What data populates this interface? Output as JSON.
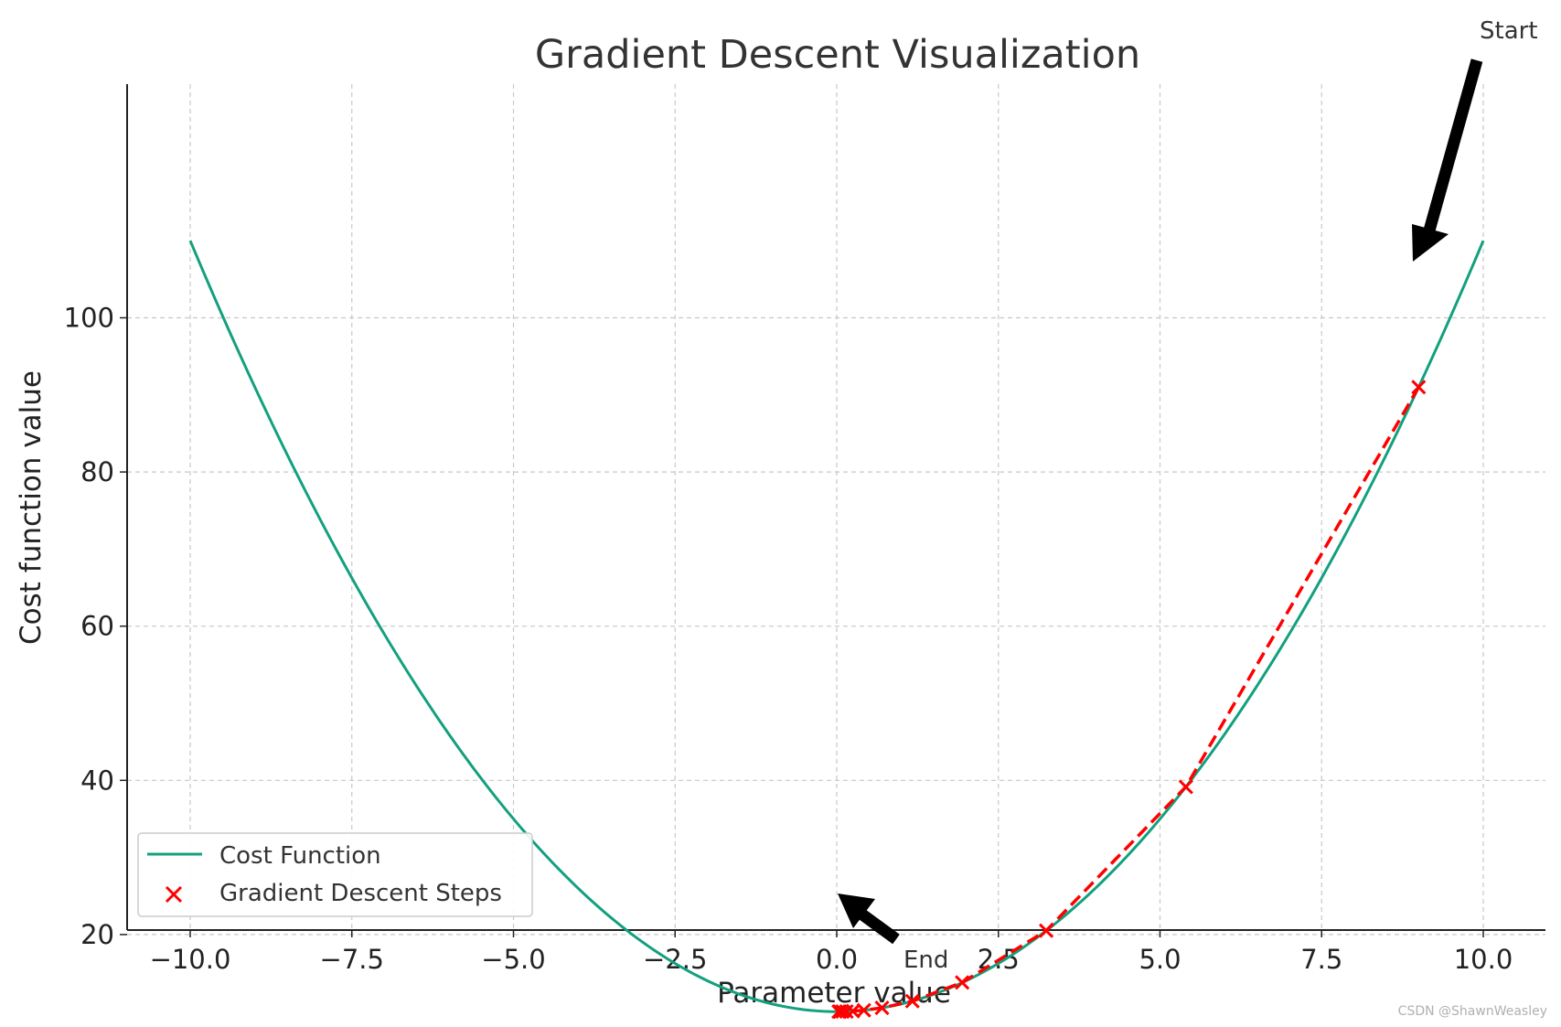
{
  "chart_data": {
    "type": "line",
    "title": "Gradient Descent Visualization",
    "xlabel": "Parameter value",
    "ylabel": "Cost function value",
    "xlim": [
      -11,
      11
    ],
    "ylim": [
      5,
      115
    ],
    "xticks": [
      -10,
      -7.5,
      -5,
      -2.5,
      0,
      2.5,
      5,
      7.5,
      10
    ],
    "xtick_labels": [
      "−10.0",
      "−7.5",
      "−5.0",
      "−2.5",
      "0.0",
      "2.5",
      "5.0",
      "7.5",
      "10.0"
    ],
    "yticks": [
      20,
      40,
      60,
      80,
      100
    ],
    "ytick_labels": [
      "20",
      "40",
      "60",
      "80",
      "100"
    ],
    "grid": true,
    "legend_position": "lower-left",
    "series": [
      {
        "name": "Cost Function",
        "kind": "line",
        "color": "#13a07e",
        "function": "x^2 + 10",
        "x_range": [
          -10,
          10
        ]
      },
      {
        "name": "Gradient Descent Steps",
        "kind": "scatter",
        "marker": "x",
        "color": "#ff0000",
        "x": [
          9.0,
          5.4,
          3.24,
          1.94,
          1.17,
          0.7,
          0.42,
          0.25,
          0.15,
          0.09,
          0.05,
          0.03
        ],
        "y": [
          91.0,
          39.16,
          20.5,
          13.78,
          11.36,
          10.49,
          10.18,
          10.06,
          10.02,
          10.01,
          10.0,
          10.0
        ]
      }
    ],
    "annotations": [
      {
        "text": "Start",
        "x": 9.0,
        "y": 91.0
      },
      {
        "text": "End",
        "x": 0.03,
        "y": 10.0
      }
    ]
  },
  "watermark": "CSDN @ShawnWeasley"
}
